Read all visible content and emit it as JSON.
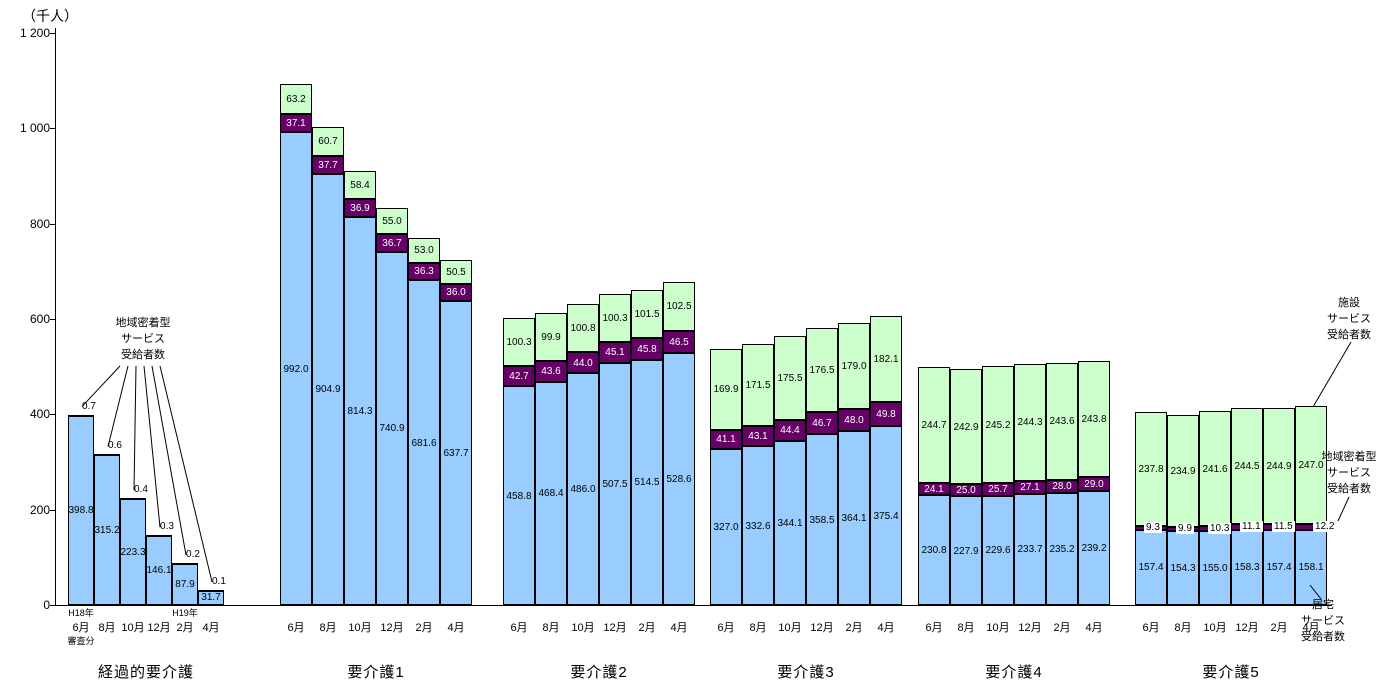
{
  "chart_data": {
    "type": "bar",
    "stacked": true,
    "y_axis_title": "（千人）",
    "ylim": [
      0,
      1200
    ],
    "y_ticks": [
      "0",
      "200",
      "400",
      "600",
      "800",
      "1 000",
      "1 200"
    ],
    "months": [
      "6月",
      "8月",
      "10月",
      "12月",
      "2月",
      "4月"
    ],
    "series_names": {
      "home": "居宅サービス受給者数",
      "community": "地域密着型サービス受給者数",
      "facility": "施設サービス受給者数"
    },
    "colors": {
      "home": "#99CCFF",
      "community": "#660066",
      "facility": "#CCFFCC"
    },
    "groups": [
      {
        "label": "経過的要介護",
        "home": [
          398.8,
          315.2,
          223.3,
          146.1,
          87.9,
          31.7
        ],
        "community": [
          0.7,
          0.6,
          0.4,
          0.3,
          0.2,
          0.1
        ],
        "facility": null,
        "sub_above": [
          "H18年",
          "",
          "",
          "",
          "H19年",
          ""
        ],
        "sub_below": [
          "審査分",
          "",
          "",
          "",
          "",
          ""
        ]
      },
      {
        "label": "要介護1",
        "home": [
          992.0,
          904.9,
          814.3,
          740.9,
          681.6,
          637.7
        ],
        "community": [
          37.1,
          37.7,
          36.9,
          36.7,
          36.3,
          36.0
        ],
        "facility": [
          63.2,
          60.7,
          58.4,
          55.0,
          53.0,
          50.5
        ]
      },
      {
        "label": "要介護2",
        "home": [
          458.8,
          468.4,
          486.0,
          507.5,
          514.5,
          528.6
        ],
        "community": [
          42.7,
          43.6,
          44.0,
          45.1,
          45.8,
          46.5
        ],
        "facility": [
          100.3,
          99.9,
          100.8,
          100.3,
          101.5,
          102.5
        ]
      },
      {
        "label": "要介護3",
        "home": [
          327.0,
          332.6,
          344.1,
          358.5,
          364.1,
          375.4
        ],
        "community": [
          41.1,
          43.1,
          44.4,
          46.7,
          48.0,
          49.8
        ],
        "facility": [
          169.9,
          171.5,
          175.5,
          176.5,
          179.0,
          182.1
        ]
      },
      {
        "label": "要介護4",
        "home": [
          230.8,
          227.9,
          229.6,
          233.7,
          235.2,
          239.2
        ],
        "community": [
          24.1,
          25.0,
          25.7,
          27.1,
          28.0,
          29.0
        ],
        "facility": [
          244.7,
          242.9,
          245.2,
          244.3,
          243.6,
          243.8
        ]
      },
      {
        "label": "要介護5",
        "home": [
          157.4,
          154.3,
          155.0,
          158.3,
          157.4,
          158.1
        ],
        "community": [
          9.3,
          9.9,
          10.3,
          11.1,
          11.5,
          12.2
        ],
        "facility": [
          237.8,
          234.9,
          241.6,
          244.5,
          244.9,
          247.0
        ]
      }
    ],
    "annotations": {
      "left_community_label": "地域密着型\nサービス\n受給者数",
      "right_facility_label": "施設\nサービス\n受給者数",
      "right_community_label": "地域密着型\nサービス\n受給者数",
      "right_home_label": "居宅\nサービス\n受給者数"
    }
  }
}
